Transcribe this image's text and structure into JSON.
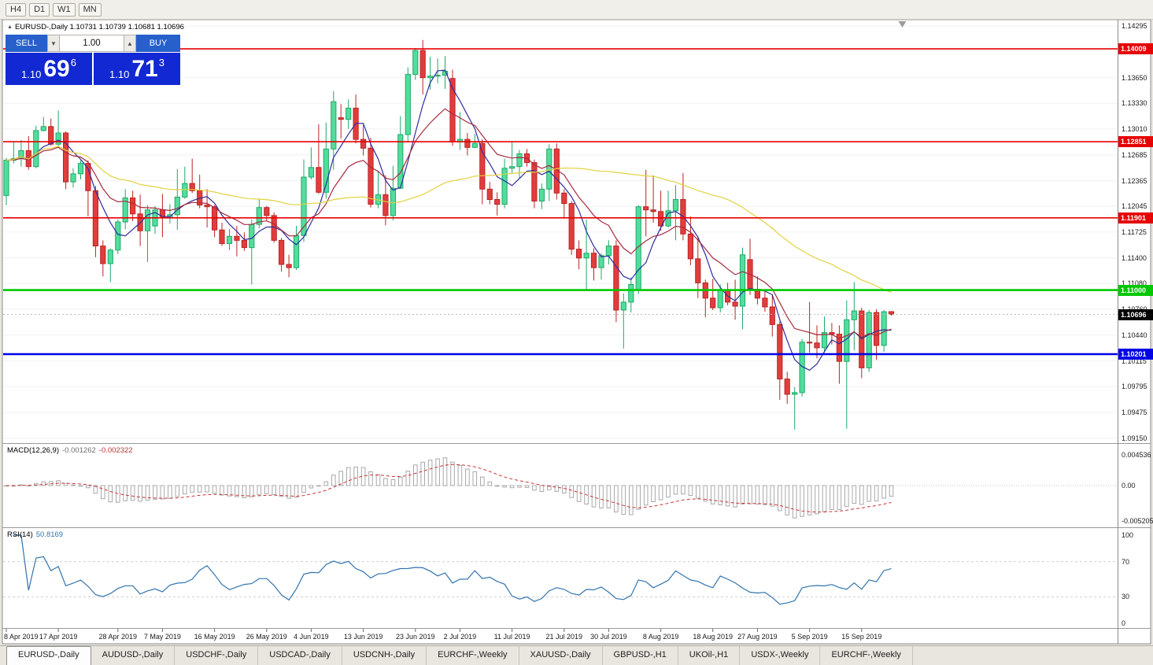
{
  "colors": {
    "button_blue": "#2760cb",
    "panel_blue": "#1228d2",
    "up_fill": "#53dd9c",
    "up_line": "#1fa968",
    "down_fill": "#e23d3d",
    "down_line": "#bb2424",
    "ma_fast": "#2d2d9e",
    "ma_mid": "#a62a3e",
    "ma_slow": "#e3d13d",
    "macd_hist": "#a8a8a8",
    "macd_signal": "#cb3434",
    "rsi_line": "#3173ad",
    "hline_red": "#e60000",
    "hline_green": "#00c800",
    "hline_blue": "#0000e6"
  },
  "icons": {
    "expand": "▲",
    "lot_decrease": "▼",
    "lot_increase": "▲"
  },
  "toolbar": {
    "timeframes": [
      "H4",
      "D1",
      "W1",
      "MN"
    ]
  },
  "chart": {
    "header_text": "EURUSD-,Daily 1.10731 1.10739 1.10681 1.10696"
  },
  "trade_panel": {
    "sell_label": "SELL",
    "buy_label": "BUY",
    "lot_size": "1.00",
    "bid": {
      "prefix": "1.10",
      "big": "69",
      "sup": "6"
    },
    "ask": {
      "prefix": "1.10",
      "big": "71",
      "sup": "3"
    }
  },
  "chart_data": {
    "type": "candlestick",
    "symbol": "EURUSD-",
    "timeframe": "Daily",
    "price_axis": [
      "1.14295",
      "1.13650",
      "1.13330",
      "1.13010",
      "1.12685",
      "1.12365",
      "1.12045",
      "1.11725",
      "1.11400",
      "1.11080",
      "1.10760",
      "1.10440",
      "1.10115",
      "1.09795",
      "1.09475",
      "1.09150"
    ],
    "hlines": [
      {
        "label": "1.14009",
        "price": 1.14009,
        "color": "#e60000",
        "width": 1.6
      },
      {
        "label": "1.12851",
        "price": 1.12851,
        "color": "#e60000",
        "width": 1.6
      },
      {
        "label": "1.11901",
        "price": 1.11901,
        "color": "#e60000",
        "width": 1.6
      },
      {
        "label": "1.11000",
        "price": 1.11,
        "color": "#00c800",
        "width": 2.6
      },
      {
        "label": "1.10201",
        "price": 1.10201,
        "color": "#0000e6",
        "width": 2.6
      }
    ],
    "current_price": {
      "label": "1.10696",
      "price": 1.10696,
      "color": "#000000"
    },
    "date_ticks": [
      {
        "label": "8 Apr 2019",
        "i": 0
      },
      {
        "label": "17 Apr 2019",
        "i": 7
      },
      {
        "label": "28 Apr 2019",
        "i": 15
      },
      {
        "label": "7 May 2019",
        "i": 21
      },
      {
        "label": "16 May 2019",
        "i": 28
      },
      {
        "label": "26 May 2019",
        "i": 35
      },
      {
        "label": "4 Jun 2019",
        "i": 41
      },
      {
        "label": "13 Jun 2019",
        "i": 48
      },
      {
        "label": "23 Jun 2019",
        "i": 55
      },
      {
        "label": "2 Jul 2019",
        "i": 61
      },
      {
        "label": "11 Jul 2019",
        "i": 68
      },
      {
        "label": "21 Jul 2019",
        "i": 75
      },
      {
        "label": "30 Jul 2019",
        "i": 81
      },
      {
        "label": "8 Aug 2019",
        "i": 88
      },
      {
        "label": "18 Aug 2019",
        "i": 95
      },
      {
        "label": "27 Aug 2019",
        "i": 101
      },
      {
        "label": "5 Sep 2019",
        "i": 108
      },
      {
        "label": "15 Sep 2019",
        "i": 115
      }
    ],
    "moving_averages": [
      {
        "period": 5,
        "type": "sma",
        "color_key": "ma_fast"
      },
      {
        "period": 12,
        "type": "ema",
        "color_key": "ma_mid"
      },
      {
        "period": 45,
        "type": "sma",
        "color_key": "ma_slow"
      }
    ],
    "indicators": {
      "macd": {
        "label": "MACD(12,26,9)",
        "fast": 12,
        "slow": 26,
        "signal": 9,
        "values": [
          "-0.001262",
          "-0.002322"
        ],
        "axis": [
          {
            "label": "0.004536",
            "v": 0.004536
          },
          {
            "label": "0.00",
            "v": 0
          },
          {
            "label": "-0.005205",
            "v": -0.005205
          }
        ]
      },
      "rsi": {
        "label": "RSI(14)",
        "period": 14,
        "value": "50.8169",
        "levels": [
          70,
          30
        ],
        "axis": [
          {
            "label": "100",
            "v": 100
          },
          {
            "label": "70",
            "v": 70
          },
          {
            "label": "30",
            "v": 30
          },
          {
            "label": "0",
            "v": 0
          }
        ]
      }
    },
    "candles": [
      [
        1.1218,
        1.1265,
        1.1206,
        1.1262
      ],
      [
        1.1262,
        1.1285,
        1.1258,
        1.1264
      ],
      [
        1.1264,
        1.1287,
        1.1254,
        1.1274
      ],
      [
        1.1274,
        1.1292,
        1.125,
        1.1254
      ],
      [
        1.1254,
        1.1305,
        1.1252,
        1.1299
      ],
      [
        1.1299,
        1.1316,
        1.1298,
        1.1304
      ],
      [
        1.1304,
        1.1314,
        1.128,
        1.1282
      ],
      [
        1.1282,
        1.1324,
        1.128,
        1.1296
      ],
      [
        1.1296,
        1.1298,
        1.1226,
        1.1235
      ],
      [
        1.1235,
        1.1252,
        1.1228,
        1.1245
      ],
      [
        1.1245,
        1.1262,
        1.1238,
        1.1258
      ],
      [
        1.1258,
        1.1262,
        1.1192,
        1.1224
      ],
      [
        1.1224,
        1.123,
        1.1141,
        1.1155
      ],
      [
        1.1155,
        1.1162,
        1.1117,
        1.1133
      ],
      [
        1.1133,
        1.1152,
        1.111,
        1.115
      ],
      [
        1.115,
        1.1188,
        1.1145,
        1.1185
      ],
      [
        1.1185,
        1.1226,
        1.1176,
        1.1215
      ],
      [
        1.1215,
        1.1224,
        1.1186,
        1.1195
      ],
      [
        1.1195,
        1.1219,
        1.1155,
        1.1174
      ],
      [
        1.1174,
        1.1206,
        1.1135,
        1.12
      ],
      [
        1.118,
        1.1205,
        1.117,
        1.12
      ],
      [
        1.12,
        1.122,
        1.1166,
        1.119
      ],
      [
        1.119,
        1.1207,
        1.1183,
        1.1194
      ],
      [
        1.1194,
        1.1251,
        1.1175,
        1.1216
      ],
      [
        1.1216,
        1.1254,
        1.1214,
        1.1233
      ],
      [
        1.1233,
        1.1264,
        1.1221,
        1.1224
      ],
      [
        1.1224,
        1.1244,
        1.1202,
        1.1206
      ],
      [
        1.1206,
        1.1226,
        1.1178,
        1.1204
      ],
      [
        1.1204,
        1.1206,
        1.1166,
        1.1175
      ],
      [
        1.1175,
        1.1184,
        1.1155,
        1.1158
      ],
      [
        1.1158,
        1.1176,
        1.115,
        1.1167
      ],
      [
        1.1167,
        1.118,
        1.1142,
        1.1162
      ],
      [
        1.1162,
        1.1172,
        1.1149,
        1.1153
      ],
      [
        1.1153,
        1.1188,
        1.1107,
        1.1182
      ],
      [
        1.1182,
        1.1213,
        1.1177,
        1.1203
      ],
      [
        1.1203,
        1.1205,
        1.1187,
        1.1193
      ],
      [
        1.1193,
        1.1197,
        1.1159,
        1.1162
      ],
      [
        1.1162,
        1.1165,
        1.1123,
        1.1132
      ],
      [
        1.1132,
        1.1144,
        1.1116,
        1.1128
      ],
      [
        1.1128,
        1.118,
        1.1125,
        1.1168
      ],
      [
        1.1168,
        1.1263,
        1.116,
        1.1241
      ],
      [
        1.1241,
        1.1278,
        1.1238,
        1.1253
      ],
      [
        1.1253,
        1.1307,
        1.122,
        1.1222
      ],
      [
        1.1222,
        1.1309,
        1.1214,
        1.1276
      ],
      [
        1.1276,
        1.1348,
        1.125,
        1.1335
      ],
      [
        1.1315,
        1.1332,
        1.1289,
        1.1313
      ],
      [
        1.1313,
        1.1338,
        1.1301,
        1.1327
      ],
      [
        1.1327,
        1.1344,
        1.1283,
        1.1288
      ],
      [
        1.1288,
        1.1306,
        1.1268,
        1.1277
      ],
      [
        1.1277,
        1.129,
        1.1203,
        1.1207
      ],
      [
        1.1207,
        1.1248,
        1.1202,
        1.1219
      ],
      [
        1.1219,
        1.1243,
        1.1181,
        1.1193
      ],
      [
        1.1193,
        1.1255,
        1.1187,
        1.1227
      ],
      [
        1.1227,
        1.1317,
        1.1226,
        1.1294
      ],
      [
        1.1294,
        1.1378,
        1.1285,
        1.1369
      ],
      [
        1.1369,
        1.1402,
        1.1362,
        1.1399
      ],
      [
        1.1399,
        1.1412,
        1.1344,
        1.1365
      ],
      [
        1.1365,
        1.1391,
        1.135,
        1.1367
      ],
      [
        1.1367,
        1.1389,
        1.1358,
        1.1368
      ],
      [
        1.1368,
        1.1392,
        1.1351,
        1.1373
      ],
      [
        1.1364,
        1.1375,
        1.128,
        1.1285
      ],
      [
        1.1285,
        1.1322,
        1.1275,
        1.1288
      ],
      [
        1.1288,
        1.1296,
        1.1268,
        1.1278
      ],
      [
        1.1278,
        1.1295,
        1.1277,
        1.1283
      ],
      [
        1.1283,
        1.1288,
        1.1207,
        1.1226
      ],
      [
        1.1226,
        1.1235,
        1.1207,
        1.1213
      ],
      [
        1.1213,
        1.1222,
        1.1193,
        1.1207
      ],
      [
        1.1207,
        1.1264,
        1.1202,
        1.1252
      ],
      [
        1.1252,
        1.1285,
        1.1245,
        1.1254
      ],
      [
        1.1254,
        1.1275,
        1.1239,
        1.127
      ],
      [
        1.127,
        1.1276,
        1.1254,
        1.1259
      ],
      [
        1.1259,
        1.1263,
        1.1202,
        1.1211
      ],
      [
        1.1211,
        1.1233,
        1.1201,
        1.1226
      ],
      [
        1.1226,
        1.1282,
        1.1211,
        1.1276
      ],
      [
        1.1276,
        1.1283,
        1.1213,
        1.1221
      ],
      [
        1.1221,
        1.1226,
        1.1189,
        1.1208
      ],
      [
        1.1208,
        1.1211,
        1.1144,
        1.1151
      ],
      [
        1.1151,
        1.1162,
        1.1126,
        1.114
      ],
      [
        1.114,
        1.1188,
        1.1101,
        1.1146
      ],
      [
        1.1146,
        1.1152,
        1.1112,
        1.1128
      ],
      [
        1.1128,
        1.1146,
        1.1113,
        1.1143
      ],
      [
        1.1143,
        1.1162,
        1.1132,
        1.1155
      ],
      [
        1.1155,
        1.1162,
        1.106,
        1.1075
      ],
      [
        1.1075,
        1.1096,
        1.1027,
        1.1085
      ],
      [
        1.1085,
        1.1116,
        1.1072,
        1.1107
      ],
      [
        1.11,
        1.1206,
        1.1095,
        1.1204
      ],
      [
        1.1204,
        1.125,
        1.1167,
        1.12
      ],
      [
        1.12,
        1.1243,
        1.1184,
        1.1198
      ],
      [
        1.1198,
        1.1224,
        1.1174,
        1.118
      ],
      [
        1.118,
        1.1224,
        1.1178,
        1.1199
      ],
      [
        1.1199,
        1.1231,
        1.1162,
        1.1213
      ],
      [
        1.1213,
        1.1246,
        1.1162,
        1.117
      ],
      [
        1.117,
        1.1192,
        1.1131,
        1.1139
      ],
      [
        1.1139,
        1.1167,
        1.109,
        1.1109
      ],
      [
        1.1109,
        1.1113,
        1.1066,
        1.109
      ],
      [
        1.109,
        1.1114,
        1.1075,
        1.1078
      ],
      [
        1.1078,
        1.1107,
        1.1072,
        1.11
      ],
      [
        1.11,
        1.1109,
        1.1081,
        1.1085
      ],
      [
        1.1085,
        1.1113,
        1.1063,
        1.108
      ],
      [
        1.108,
        1.1153,
        1.1051,
        1.1144
      ],
      [
        1.1138,
        1.1164,
        1.1094,
        1.1101
      ],
      [
        1.1101,
        1.1117,
        1.1082,
        1.109
      ],
      [
        1.109,
        1.1098,
        1.1073,
        1.1079
      ],
      [
        1.1079,
        1.1094,
        1.1042,
        1.1057
      ],
      [
        1.1057,
        1.1061,
        1.0963,
        1.0989
      ],
      [
        1.0989,
        1.0998,
        1.0958,
        1.097
      ],
      [
        1.097,
        1.0979,
        1.0926,
        1.0972
      ],
      [
        1.0972,
        1.1039,
        1.0967,
        1.1035
      ],
      [
        1.1035,
        1.1085,
        1.1022,
        1.1034
      ],
      [
        1.1034,
        1.1056,
        1.1015,
        1.1028
      ],
      [
        1.1028,
        1.1067,
        1.1022,
        1.1047
      ],
      [
        1.1047,
        1.1059,
        1.1032,
        1.1045
      ],
      [
        1.1045,
        1.1056,
        1.0983,
        1.1011
      ],
      [
        1.1011,
        1.1087,
        1.0927,
        1.1063
      ],
      [
        1.1063,
        1.111,
        1.1025,
        1.1074
      ],
      [
        1.1074,
        1.1078,
        1.099,
        1.1003
      ],
      [
        1.1003,
        1.1075,
        1.0998,
        1.1072
      ],
      [
        1.1072,
        1.1076,
        1.1013,
        1.1031
      ],
      [
        1.1031,
        1.1075,
        1.1023,
        1.1073
      ],
      [
        1.10731,
        1.10739,
        1.10681,
        1.10696
      ]
    ]
  },
  "tabs": {
    "items": [
      {
        "label": "EURUSD-,Daily",
        "active": true
      },
      {
        "label": "AUDUSD-,Daily"
      },
      {
        "label": "USDCHF-,Daily"
      },
      {
        "label": "USDCAD-,Daily"
      },
      {
        "label": "USDCNH-,Daily"
      },
      {
        "label": "EURCHF-,Weekly"
      },
      {
        "label": "XAUUSD-,Daily"
      },
      {
        "label": "GBPUSD-,H1"
      },
      {
        "label": "UKOil-,H1"
      },
      {
        "label": "USDX-,Weekly"
      },
      {
        "label": "EURCHF-,Weekly"
      }
    ]
  }
}
